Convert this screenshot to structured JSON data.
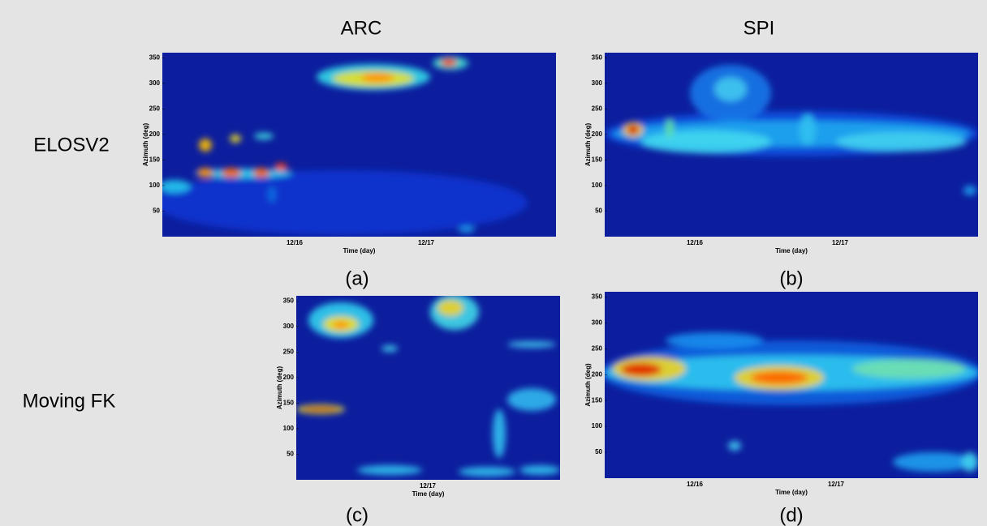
{
  "column_titles": [
    "ARC",
    "SPI"
  ],
  "row_titles": [
    "ELOSV2",
    "Moving FK"
  ],
  "chart_data": [
    {
      "type": "heatmap",
      "label": "(a)",
      "ylabel": "Azimuth (deg)",
      "xlabel": "Time (day)",
      "ylim": [
        0,
        360
      ],
      "yticks": [
        50,
        100,
        150,
        200,
        250,
        300,
        350
      ],
      "xticks": [
        "12/16",
        "12/17"
      ]
    },
    {
      "type": "heatmap",
      "label": "(b)",
      "ylabel": "Azimuth (deg)",
      "xlabel": "Time (day)",
      "ylim": [
        0,
        360
      ],
      "yticks": [
        50,
        100,
        150,
        200,
        250,
        300,
        350
      ],
      "xticks": [
        "12/16",
        "12/17"
      ]
    },
    {
      "type": "heatmap",
      "label": "(c)",
      "ylabel": "Azimuth (deg)",
      "xlabel": "Time (day)",
      "ylim": [
        0,
        360
      ],
      "yticks": [
        50,
        100,
        150,
        200,
        250,
        300,
        350
      ],
      "xticks": [
        "12/17"
      ]
    },
    {
      "type": "heatmap",
      "label": "(d)",
      "ylabel": "Azimuth (deg)",
      "xlabel": "Time (day)",
      "ylim": [
        0,
        360
      ],
      "yticks": [
        50,
        100,
        150,
        200,
        250,
        300,
        350
      ],
      "xticks": [
        "12/16",
        "12/17"
      ]
    }
  ]
}
